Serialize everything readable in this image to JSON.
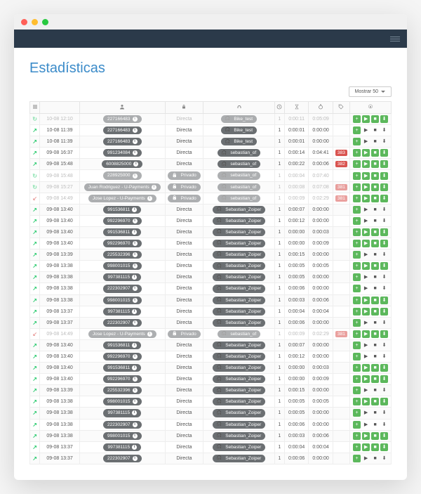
{
  "brand_colors": {
    "navbar": "#2b3a4a",
    "title": "#3b8bc9",
    "green": "#5cb85c",
    "red": "#d9534f",
    "pill": "#6b6f72"
  },
  "window_dots": [
    "#ff5f57",
    "#ffbd2e",
    "#28c940"
  ],
  "page": {
    "title": "Estadísticas"
  },
  "toolbar": {
    "show_label": "Mostrar 50"
  },
  "headers": {
    "direction_icon": "list-icon",
    "user_icon": "user-icon",
    "lock_icon": "lock-icon",
    "agent_icon": "headphones-icon",
    "clock_icon": "clock-icon",
    "hourglass_icon": "hourglass-icon",
    "timer_icon": "timer-icon",
    "tag_icon": "tag-icon",
    "gear_icon": "gear-icon"
  },
  "rows": [
    {
      "dir": "loop",
      "dim": true,
      "date": "10-08 12:10",
      "user": "227166483",
      "priv": "Directa",
      "priv_lock": false,
      "agent": "Bike_test",
      "n": 1,
      "t1": "0:00:11",
      "t2": "0:05:09",
      "tag": "",
      "actions": "g4"
    },
    {
      "dir": "out",
      "dim": false,
      "date": "10-08 11:39",
      "user": "227166483",
      "priv": "Directa",
      "priv_lock": false,
      "agent": "Bike_test",
      "n": 1,
      "t1": "0:00:01",
      "t2": "0:00:00",
      "tag": "",
      "actions": "p3"
    },
    {
      "dir": "out",
      "dim": false,
      "date": "10-08 11:39",
      "user": "227166483",
      "priv": "Directa",
      "priv_lock": false,
      "agent": "Bike_test",
      "n": 1,
      "t1": "0:00:01",
      "t2": "0:00:00",
      "tag": "",
      "actions": "p3"
    },
    {
      "dir": "out",
      "dim": false,
      "date": "09-08 16:37",
      "user": "991234084",
      "priv": "Directa",
      "priv_lock": false,
      "agent": "sebastian_of",
      "n": 1,
      "t1": "0:00:14",
      "t2": "0:04:41",
      "tag": "383",
      "actions": "g4"
    },
    {
      "dir": "out",
      "dim": false,
      "date": "09-08 15:48",
      "user": "6008825000",
      "priv": "Directa",
      "priv_lock": false,
      "agent": "sebastian_of",
      "n": 1,
      "t1": "0:00:22",
      "t2": "0:00:06",
      "tag": "382",
      "actions": "g4"
    },
    {
      "dir": "loop",
      "dim": true,
      "date": "09-08 15:48",
      "user": "228925000",
      "priv": "Privado",
      "priv_lock": true,
      "agent": "sebastian_of",
      "n": 1,
      "t1": "0:00:04",
      "t2": "0:07:40",
      "tag": "",
      "actions": "g4"
    },
    {
      "dir": "loop",
      "dim": true,
      "date": "09-08 15:27",
      "user": "Juan Rodriguez - U-Payments",
      "priv": "Privado",
      "priv_lock": true,
      "agent": "sebastian_of",
      "n": 1,
      "t1": "0:00:08",
      "t2": "0:07:08",
      "tag": "381",
      "actions": "g4"
    },
    {
      "dir": "in",
      "dim": true,
      "date": "09-08 14:49",
      "user": "Jose Lopez - U-Payments",
      "priv": "Privado",
      "priv_lock": true,
      "agent": "sebastian_of",
      "n": 1,
      "t1": "0:00:09",
      "t2": "0:02:29",
      "tag": "381",
      "actions": "g4"
    },
    {
      "dir": "out",
      "dim": false,
      "date": "09-08 13:40",
      "user": "991536811",
      "priv": "Directa",
      "priv_lock": false,
      "agent": "Sebastian_Zoiper",
      "n": 1,
      "t1": "0:00:07",
      "t2": "0:00:00",
      "tag": "",
      "actions": "p3"
    },
    {
      "dir": "out",
      "dim": false,
      "date": "09-08 13:40",
      "user": "992296970",
      "priv": "Directa",
      "priv_lock": false,
      "agent": "Sebastian_Zoiper",
      "n": 1,
      "t1": "0:00:12",
      "t2": "0:00:00",
      "tag": "",
      "actions": "p3"
    },
    {
      "dir": "out",
      "dim": false,
      "date": "09-08 13:40",
      "user": "991536811",
      "priv": "Directa",
      "priv_lock": false,
      "agent": "Sebastian_Zoiper",
      "n": 1,
      "t1": "0:00:00",
      "t2": "0:00:03",
      "tag": "",
      "actions": "g4"
    },
    {
      "dir": "out",
      "dim": false,
      "date": "09-08 13:40",
      "user": "992296970",
      "priv": "Directa",
      "priv_lock": false,
      "agent": "Sebastian_Zoiper",
      "n": 1,
      "t1": "0:00:00",
      "t2": "0:00:09",
      "tag": "",
      "actions": "g4"
    },
    {
      "dir": "out",
      "dim": false,
      "date": "09-08 13:39",
      "user": "225532396",
      "priv": "Directa",
      "priv_lock": false,
      "agent": "Sebastian_Zoiper",
      "n": 1,
      "t1": "0:00:15",
      "t2": "0:00:00",
      "tag": "",
      "actions": "p3"
    },
    {
      "dir": "out",
      "dim": false,
      "date": "09-08 13:38",
      "user": "998001015",
      "priv": "Directa",
      "priv_lock": false,
      "agent": "Sebastian_Zoiper",
      "n": 1,
      "t1": "0:00:05",
      "t2": "0:00:05",
      "tag": "",
      "actions": "g4"
    },
    {
      "dir": "out",
      "dim": false,
      "date": "09-08 13:38",
      "user": "997381115",
      "priv": "Directa",
      "priv_lock": false,
      "agent": "Sebastian_Zoiper",
      "n": 1,
      "t1": "0:00:05",
      "t2": "0:00:00",
      "tag": "",
      "actions": "p3"
    },
    {
      "dir": "out",
      "dim": false,
      "date": "09-08 13:38",
      "user": "222302907",
      "priv": "Directa",
      "priv_lock": false,
      "agent": "Sebastian_Zoiper",
      "n": 1,
      "t1": "0:00:06",
      "t2": "0:00:00",
      "tag": "",
      "actions": "p3"
    },
    {
      "dir": "out",
      "dim": false,
      "date": "09-08 13:38",
      "user": "998001015",
      "priv": "Directa",
      "priv_lock": false,
      "agent": "Sebastian_Zoiper",
      "n": 1,
      "t1": "0:00:03",
      "t2": "0:00:06",
      "tag": "",
      "actions": "g4"
    },
    {
      "dir": "out",
      "dim": false,
      "date": "09-08 13:37",
      "user": "997381115",
      "priv": "Directa",
      "priv_lock": false,
      "agent": "Sebastian_Zoiper",
      "n": 1,
      "t1": "0:00:04",
      "t2": "0:00:04",
      "tag": "",
      "actions": "g4"
    },
    {
      "dir": "out",
      "dim": false,
      "date": "09-08 13:37",
      "user": "222302907",
      "priv": "Directa",
      "priv_lock": false,
      "agent": "Sebastian_Zoiper",
      "n": 1,
      "t1": "0:00:06",
      "t2": "0:00:00",
      "tag": "",
      "actions": "p3"
    },
    {
      "dir": "in",
      "dim": true,
      "date": "09-08 14:49",
      "user": "Jose Lopez - U-Payments",
      "priv": "Privado",
      "priv_lock": true,
      "agent": "sebastian_of",
      "n": 1,
      "t1": "0:00:09",
      "t2": "0:02:29",
      "tag": "381",
      "actions": "g4"
    },
    {
      "dir": "out",
      "dim": false,
      "date": "09-08 13:40",
      "user": "991536811",
      "priv": "Directa",
      "priv_lock": false,
      "agent": "Sebastian_Zoiper",
      "n": 1,
      "t1": "0:00:07",
      "t2": "0:00:00",
      "tag": "",
      "actions": "p3"
    },
    {
      "dir": "out",
      "dim": false,
      "date": "09-08 13:40",
      "user": "992296970",
      "priv": "Directa",
      "priv_lock": false,
      "agent": "Sebastian_Zoiper",
      "n": 1,
      "t1": "0:00:12",
      "t2": "0:00:00",
      "tag": "",
      "actions": "p3"
    },
    {
      "dir": "out",
      "dim": false,
      "date": "09-08 13:40",
      "user": "991536811",
      "priv": "Directa",
      "priv_lock": false,
      "agent": "Sebastian_Zoiper",
      "n": 1,
      "t1": "0:00:00",
      "t2": "0:00:03",
      "tag": "",
      "actions": "g4"
    },
    {
      "dir": "out",
      "dim": false,
      "date": "09-08 13:40",
      "user": "992296970",
      "priv": "Directa",
      "priv_lock": false,
      "agent": "Sebastian_Zoiper",
      "n": 1,
      "t1": "0:00:00",
      "t2": "0:00:09",
      "tag": "",
      "actions": "g4"
    },
    {
      "dir": "out",
      "dim": false,
      "date": "09-08 13:39",
      "user": "225532396",
      "priv": "Directa",
      "priv_lock": false,
      "agent": "Sebastian_Zoiper",
      "n": 1,
      "t1": "0:00:15",
      "t2": "0:00:00",
      "tag": "",
      "actions": "p3"
    },
    {
      "dir": "out",
      "dim": false,
      "date": "09-08 13:38",
      "user": "998001015",
      "priv": "Directa",
      "priv_lock": false,
      "agent": "Sebastian_Zoiper",
      "n": 1,
      "t1": "0:00:05",
      "t2": "0:00:05",
      "tag": "",
      "actions": "g4"
    },
    {
      "dir": "out",
      "dim": false,
      "date": "09-08 13:38",
      "user": "997381115",
      "priv": "Directa",
      "priv_lock": false,
      "agent": "Sebastian_Zoiper",
      "n": 1,
      "t1": "0:00:05",
      "t2": "0:00:00",
      "tag": "",
      "actions": "p3"
    },
    {
      "dir": "out",
      "dim": false,
      "date": "09-08 13:38",
      "user": "222302907",
      "priv": "Directa",
      "priv_lock": false,
      "agent": "Sebastian_Zoiper",
      "n": 1,
      "t1": "0:00:06",
      "t2": "0:00:00",
      "tag": "",
      "actions": "p3"
    },
    {
      "dir": "out",
      "dim": false,
      "date": "09-08 13:38",
      "user": "998001015",
      "priv": "Directa",
      "priv_lock": false,
      "agent": "Sebastian_Zoiper",
      "n": 1,
      "t1": "0:00:03",
      "t2": "0:00:06",
      "tag": "",
      "actions": "g4"
    },
    {
      "dir": "out",
      "dim": false,
      "date": "09-08 13:37",
      "user": "997381115",
      "priv": "Directa",
      "priv_lock": false,
      "agent": "Sebastian_Zoiper",
      "n": 1,
      "t1": "0:00:04",
      "t2": "0:00:04",
      "tag": "",
      "actions": "g4"
    },
    {
      "dir": "out",
      "dim": false,
      "date": "09-08 13:37",
      "user": "222302907",
      "priv": "Directa",
      "priv_lock": false,
      "agent": "Sebastian_Zoiper",
      "n": 1,
      "t1": "0:00:06",
      "t2": "0:00:00",
      "tag": "",
      "actions": "p3"
    }
  ]
}
